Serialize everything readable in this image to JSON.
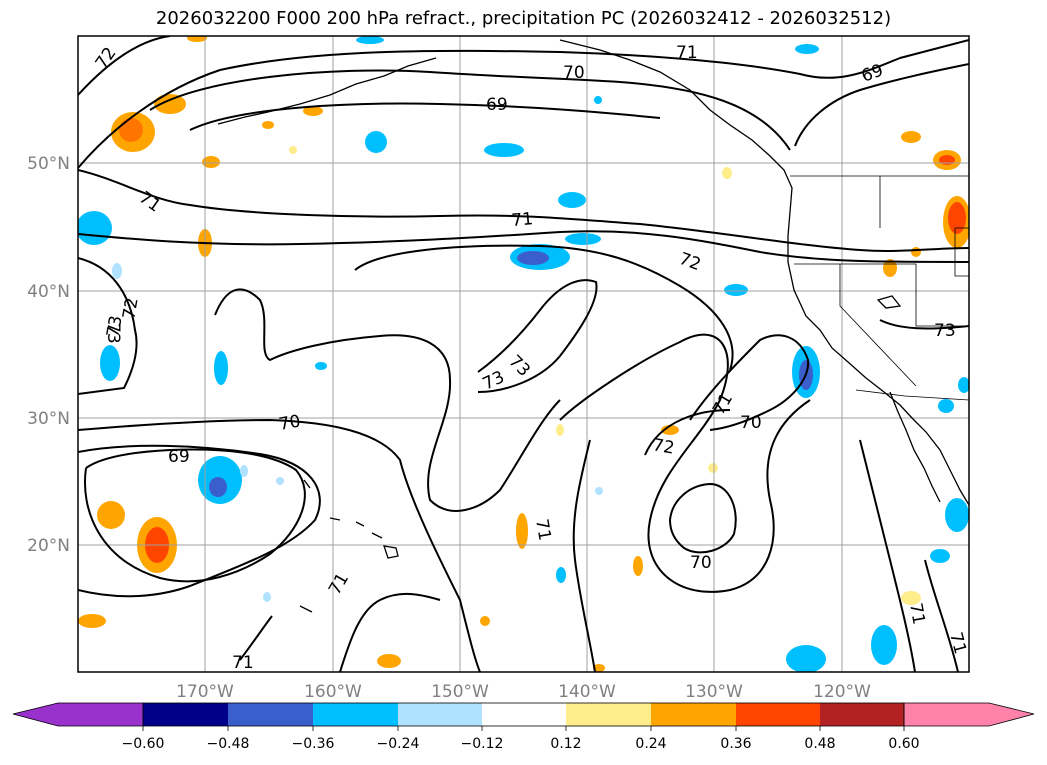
{
  "title": "2026032200 F000 200 hPa refract., precipitation PC (2026032412 - 2026032512)",
  "colors": {
    "grid": "#a0a0a0",
    "contour": "#000000",
    "axis_label": "#808080"
  },
  "map": {
    "lat_labels": [
      "50°N",
      "40°N",
      "30°N",
      "20°N"
    ],
    "lon_labels": [
      "170°W",
      "160°W",
      "150°W",
      "140°W",
      "130°W",
      "120°W"
    ],
    "contour_labels": [
      "72",
      "71",
      "70",
      "69",
      "69",
      "71",
      "71",
      "72",
      "73",
      "73",
      "73",
      "73",
      "72",
      "71",
      "70",
      "69",
      "72",
      "71",
      "70",
      "70",
      "71",
      "71",
      "71",
      "71",
      "73"
    ]
  },
  "colorbar": {
    "tick_labels": [
      "−0.60",
      "−0.48",
      "−0.36",
      "−0.24",
      "−0.12",
      "0.12",
      "0.24",
      "0.36",
      "0.48",
      "0.60"
    ],
    "colors": [
      "#9932cc",
      "#00008b",
      "#3a5fcd",
      "#00bfff",
      "#b0e2ff",
      "#ffffff",
      "#ffec8b",
      "#ffa500",
      "#ff4500",
      "#b22222",
      "#ff82ab"
    ]
  }
}
